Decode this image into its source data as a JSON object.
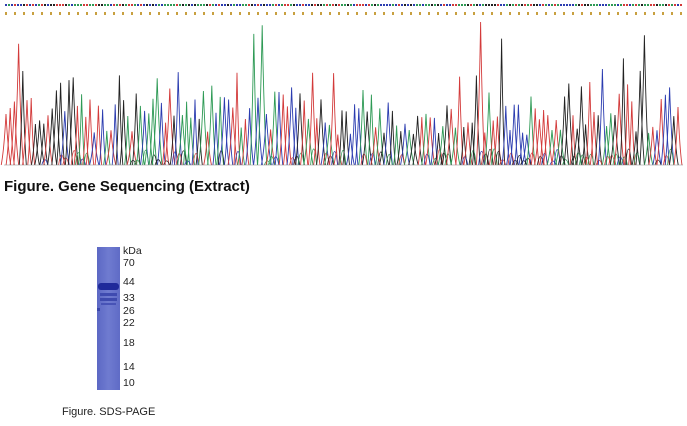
{
  "figure1": {
    "caption": "Figure. Gene Sequencing (Extract)"
  },
  "figure2": {
    "caption": "Figure. SDS-PAGE",
    "unit_label": "kDa",
    "markers": [
      "70",
      "44",
      "33",
      "26",
      "22",
      "18",
      "14",
      "10"
    ]
  }
}
